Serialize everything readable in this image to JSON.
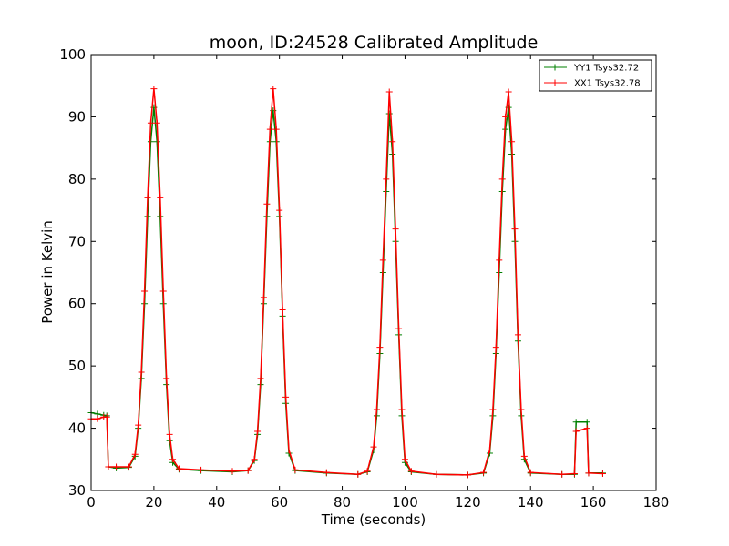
{
  "chart_data": {
    "type": "line",
    "title": "moon, ID:24528 Calibrated Amplitude",
    "xlabel": "Time (seconds)",
    "ylabel": "Power in Kelvin",
    "xlim": [
      0,
      180
    ],
    "ylim": [
      30,
      100
    ],
    "xticks": [
      "0",
      "20",
      "40",
      "60",
      "80",
      "100",
      "120",
      "140",
      "160",
      "180"
    ],
    "yticks": [
      "30",
      "40",
      "50",
      "60",
      "70",
      "80",
      "90",
      "100"
    ],
    "grid": false,
    "legend_position": "top-right",
    "series": [
      {
        "name": "YY1 Tsys32.72",
        "color": "#008000",
        "marker": "+",
        "x": [
          0,
          2,
          4,
          5,
          5.5,
          8,
          12,
          14,
          15,
          16,
          17,
          18,
          19,
          20,
          21,
          22,
          23,
          24,
          25,
          26,
          28,
          35,
          45,
          50,
          52,
          53,
          54,
          55,
          56,
          57,
          58,
          59,
          60,
          61,
          62,
          63,
          65,
          75,
          85,
          88,
          90,
          91,
          92,
          93,
          94,
          95,
          96,
          97,
          98,
          99,
          100,
          102,
          110,
          120,
          125,
          127,
          128,
          129,
          130,
          131,
          132,
          133,
          134,
          135,
          136,
          137,
          138,
          140,
          150,
          154,
          154.5,
          158,
          158.5,
          163
        ],
        "y": [
          42.5,
          42.3,
          42.1,
          42.0,
          33.8,
          33.6,
          33.7,
          35.5,
          40,
          48,
          60,
          74,
          86,
          91.5,
          86,
          74,
          60,
          47,
          38,
          34.5,
          33.4,
          33.2,
          33.0,
          33.2,
          34.8,
          39,
          47,
          60,
          74,
          86,
          91,
          86,
          74,
          58,
          44,
          36,
          33.2,
          32.8,
          32.6,
          33,
          36.5,
          42,
          52,
          65,
          78,
          90.5,
          84,
          70,
          55,
          42,
          34.5,
          33,
          32.6,
          32.5,
          32.8,
          36,
          42,
          52,
          65,
          78,
          88,
          91.5,
          84,
          70,
          54,
          42,
          35,
          32.8,
          32.6,
          32.6,
          41,
          41,
          32.8,
          32.8
        ]
      },
      {
        "name": "XX1 Tsys32.78",
        "color": "#ff0000",
        "marker": "+",
        "x": [
          0,
          2,
          4,
          5,
          5.5,
          8,
          12,
          14,
          15,
          16,
          17,
          18,
          19,
          20,
          21,
          22,
          23,
          24,
          25,
          26,
          28,
          35,
          45,
          50,
          52,
          53,
          54,
          55,
          56,
          57,
          58,
          59,
          60,
          61,
          62,
          63,
          65,
          75,
          85,
          88,
          90,
          91,
          92,
          93,
          94,
          95,
          96,
          97,
          98,
          99,
          100,
          102,
          110,
          120,
          125,
          127,
          128,
          129,
          130,
          131,
          132,
          133,
          134,
          135,
          136,
          137,
          138,
          140,
          150,
          154,
          154.5,
          158,
          158.5,
          163
        ],
        "y": [
          41.5,
          41.5,
          41.8,
          41.8,
          33.8,
          33.8,
          33.8,
          35.8,
          40.5,
          49,
          62,
          77,
          89,
          94.5,
          89,
          77,
          62,
          48,
          39,
          35,
          33.5,
          33.3,
          33.1,
          33.2,
          35,
          39.5,
          48,
          61,
          76,
          88,
          94.5,
          88,
          75,
          59,
          45,
          36.5,
          33.3,
          32.9,
          32.6,
          33.1,
          37,
          43,
          53,
          67,
          80,
          94,
          86,
          72,
          56,
          43,
          35,
          33.1,
          32.6,
          32.5,
          32.9,
          36.5,
          43,
          53,
          67,
          80,
          90,
          94,
          86,
          72,
          55,
          43,
          35.5,
          32.9,
          32.6,
          32.7,
          39.5,
          40,
          32.8,
          32.7
        ]
      }
    ]
  }
}
